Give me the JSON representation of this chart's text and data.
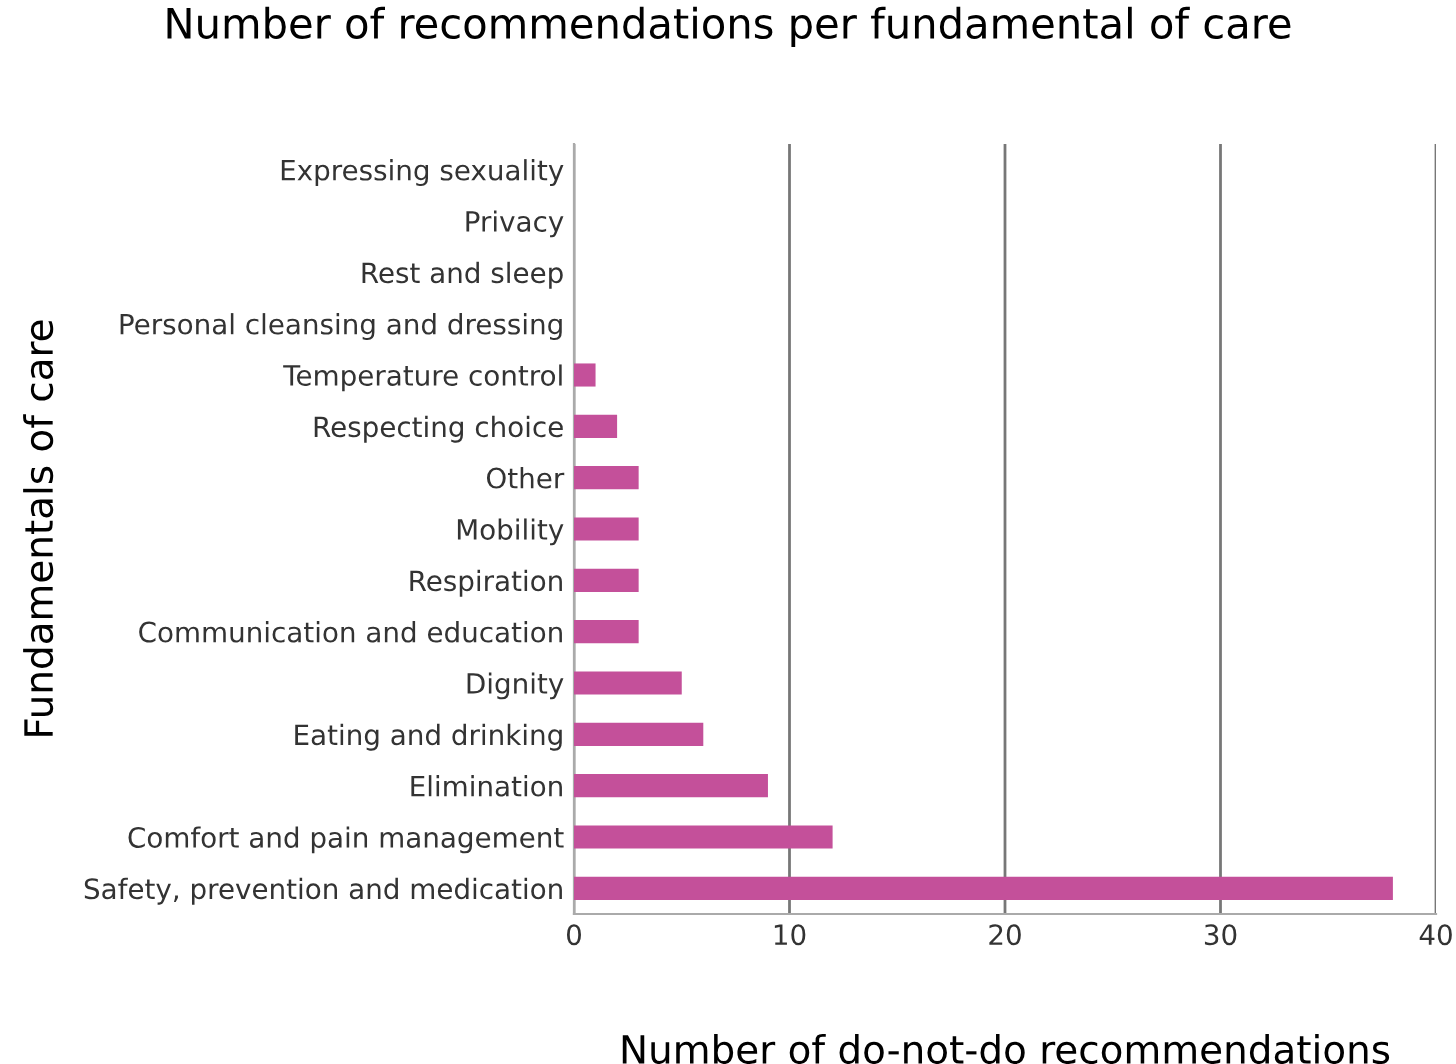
{
  "chart_data": {
    "type": "bar",
    "orientation": "horizontal",
    "title": "Number of recommendations per fundamental of care",
    "xlabel": "Number of do-not-do recommendations",
    "ylabel": "Fundamentals of care",
    "categories": [
      "Expressing sexuality",
      "Privacy",
      "Rest and sleep",
      "Personal cleansing and dressing",
      "Temperature control",
      "Respecting choice",
      "Other",
      "Mobility",
      "Respiration",
      "Communication and education",
      "Dignity",
      "Eating and drinking",
      "Elimination",
      "Comfort and pain management",
      "Safety, prevention and medication"
    ],
    "values": [
      0,
      0,
      0,
      0,
      1,
      2,
      3,
      3,
      3,
      3,
      5,
      6,
      9,
      12,
      38
    ],
    "color": "#c4509a",
    "xlim": [
      0,
      40
    ],
    "xticks": [
      0,
      10,
      20,
      30,
      40
    ],
    "grid": "x",
    "legend": false
  }
}
